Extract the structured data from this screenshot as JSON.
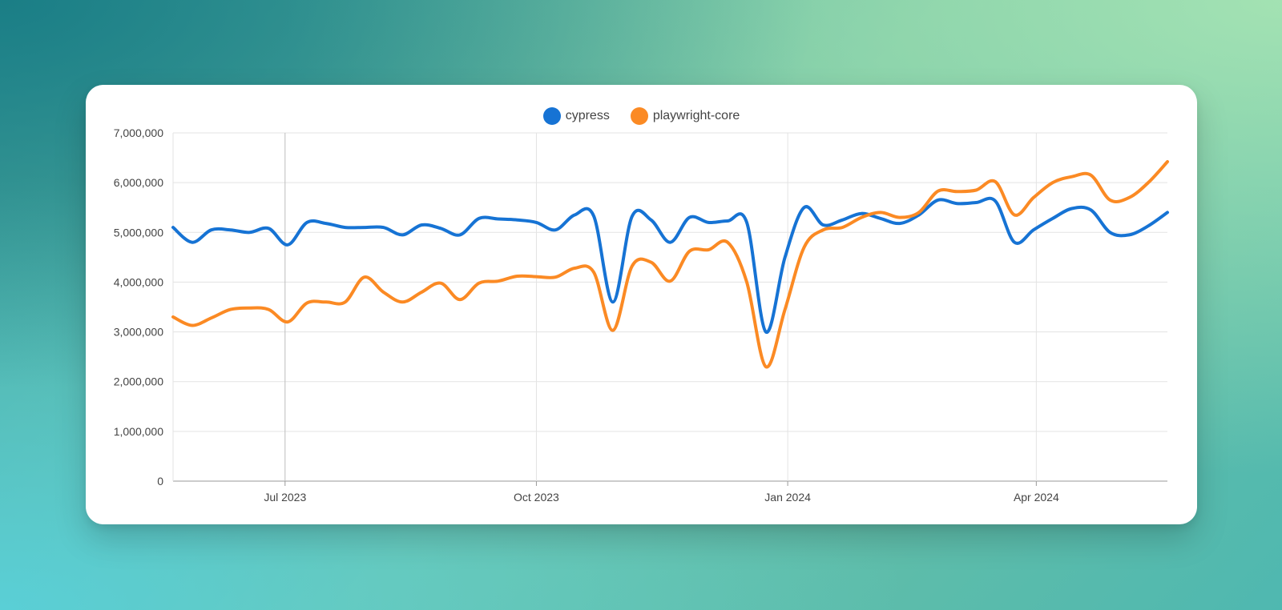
{
  "colors": {
    "cypress": "#1673d4",
    "playwright": "#fb8a24",
    "grid": "#e3e3e3",
    "axis": "#999999"
  },
  "chart_data": {
    "type": "line",
    "legend_placement": "top-center",
    "grid": true,
    "ylim": [
      0,
      7000000
    ],
    "xlim": [
      "2023-05-21",
      "2024-05-19"
    ],
    "y_ticks": [
      "0",
      "1,000,000",
      "2,000,000",
      "3,000,000",
      "4,000,000",
      "5,000,000",
      "6,000,000",
      "7,000,000"
    ],
    "x_ticks": [
      {
        "date": "2023-07-01",
        "label": "Jul 2023"
      },
      {
        "date": "2023-10-01",
        "label": "Oct 2023"
      },
      {
        "date": "2024-01-01",
        "label": "Jan 2024"
      },
      {
        "date": "2024-04-01",
        "label": "Apr 2024"
      }
    ],
    "x": [
      "2023-05-21",
      "2023-05-28",
      "2023-06-04",
      "2023-06-11",
      "2023-06-18",
      "2023-06-25",
      "2023-07-02",
      "2023-07-09",
      "2023-07-16",
      "2023-07-23",
      "2023-07-30",
      "2023-08-06",
      "2023-08-13",
      "2023-08-20",
      "2023-08-27",
      "2023-09-03",
      "2023-09-10",
      "2023-09-17",
      "2023-09-24",
      "2023-10-01",
      "2023-10-08",
      "2023-10-15",
      "2023-10-22",
      "2023-10-29",
      "2023-11-05",
      "2023-11-12",
      "2023-11-19",
      "2023-11-26",
      "2023-12-03",
      "2023-12-10",
      "2023-12-17",
      "2023-12-24",
      "2023-12-31",
      "2024-01-07",
      "2024-01-14",
      "2024-01-21",
      "2024-01-28",
      "2024-02-04",
      "2024-02-11",
      "2024-02-18",
      "2024-02-25",
      "2024-03-03",
      "2024-03-10",
      "2024-03-17",
      "2024-03-24",
      "2024-03-31",
      "2024-04-07",
      "2024-04-14",
      "2024-04-21",
      "2024-04-28",
      "2024-05-05",
      "2024-05-12",
      "2024-05-19"
    ],
    "series": [
      {
        "name": "cypress",
        "values": [
          5100000,
          4800000,
          5050000,
          5050000,
          5000000,
          5080000,
          4750000,
          5200000,
          5180000,
          5100000,
          5100000,
          5100000,
          4950000,
          5150000,
          5080000,
          4950000,
          5280000,
          5270000,
          5250000,
          5200000,
          5050000,
          5350000,
          5330000,
          3600000,
          5320000,
          5250000,
          4800000,
          5300000,
          5200000,
          5230000,
          5200000,
          3000000,
          4500000,
          5500000,
          5150000,
          5250000,
          5380000,
          5280000,
          5180000,
          5350000,
          5650000,
          5580000,
          5600000,
          5630000,
          4800000,
          5050000,
          5280000,
          5480000,
          5450000,
          5000000,
          4950000,
          5130000,
          5400000
        ]
      },
      {
        "name": "playwright-core",
        "values": [
          3300000,
          3130000,
          3280000,
          3450000,
          3480000,
          3450000,
          3200000,
          3580000,
          3600000,
          3600000,
          4100000,
          3800000,
          3600000,
          3800000,
          3980000,
          3650000,
          3980000,
          4020000,
          4120000,
          4110000,
          4100000,
          4280000,
          4200000,
          3030000,
          4320000,
          4400000,
          4020000,
          4620000,
          4650000,
          4800000,
          4000000,
          2300000,
          3450000,
          4700000,
          5050000,
          5100000,
          5300000,
          5400000,
          5300000,
          5400000,
          5830000,
          5820000,
          5850000,
          6020000,
          5350000,
          5700000,
          6000000,
          6120000,
          6150000,
          5650000,
          5700000,
          6000000,
          6420000
        ]
      }
    ]
  }
}
